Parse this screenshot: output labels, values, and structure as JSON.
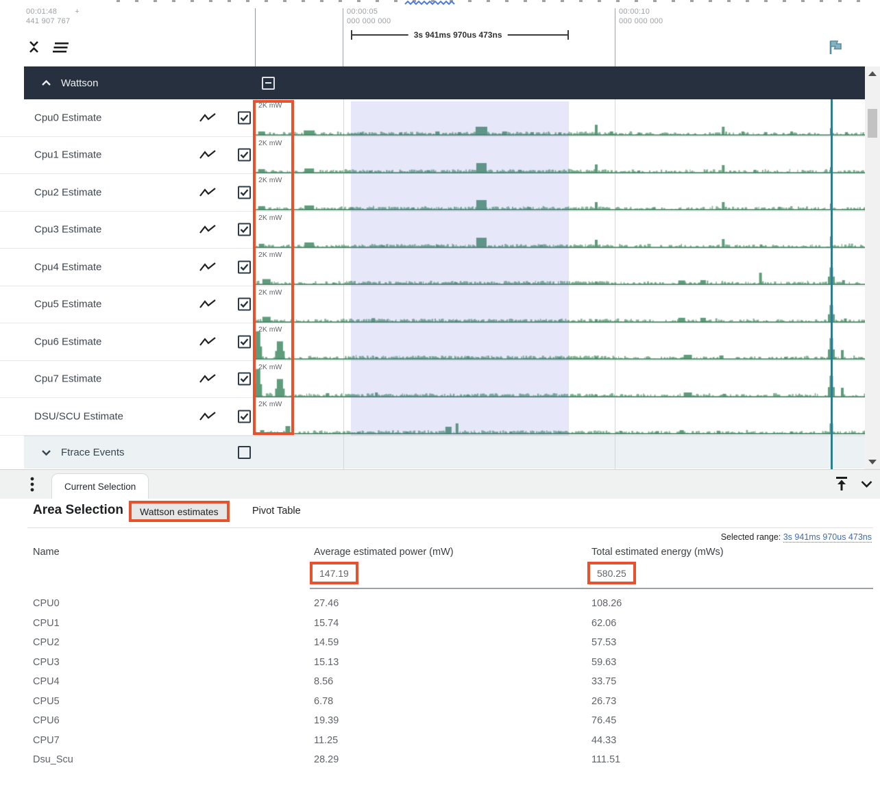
{
  "colors": {
    "accent_orange": "#e8512b",
    "group_header_bg": "#26303e",
    "selection_lavender": "rgba(99,104,210,0.16)",
    "marker_teal": "#2b7d8f",
    "flag_teal": "#6ba3b4",
    "link_blue": "#3d6bb5",
    "trace_fill": "#7fb394",
    "trace_spike": "#5f9c7b",
    "trace_line": "#3e7d5b"
  },
  "timeline": {
    "cursor": {
      "time": "00:01:48",
      "plus": "+",
      "ns": "441 907 767"
    },
    "ticks": [
      {
        "time": "00:00:05",
        "ns": "000 000 000"
      },
      {
        "time": "00:00:10",
        "ns": "000 000 000"
      }
    ],
    "selection_duration": "3s 941ms 970us 473ns"
  },
  "wattson_group": {
    "label": "Wattson",
    "checkbox_state": "indeterminate"
  },
  "tracks": [
    {
      "label": "Cpu0 Estimate",
      "unit": "2K mW",
      "checked": true,
      "seed": 11,
      "spikes": [
        [
          0.012,
          0.1,
          10
        ],
        [
          0.09,
          0.13,
          16
        ],
        [
          0.175,
          0.06,
          5
        ],
        [
          0.24,
          0.07,
          5
        ],
        [
          0.3,
          0.1,
          6
        ],
        [
          0.336,
          0.08,
          5
        ],
        [
          0.372,
          0.24,
          17
        ],
        [
          0.41,
          0.1,
          7
        ],
        [
          0.455,
          0.08,
          5
        ],
        [
          0.5,
          0.07,
          4
        ],
        [
          0.56,
          0.3,
          4
        ],
        [
          0.585,
          0.1,
          5
        ],
        [
          0.63,
          0.07,
          4
        ],
        [
          0.768,
          0.24,
          4
        ],
        [
          0.8,
          0.1,
          4
        ],
        [
          0.838,
          0.08,
          4
        ],
        [
          0.88,
          0.1,
          4
        ],
        [
          0.945,
          0.2,
          4
        ],
        [
          0.97,
          0.08,
          4
        ]
      ]
    },
    {
      "label": "Cpu1 Estimate",
      "unit": "2K mW",
      "checked": true,
      "seed": 22,
      "spikes": [
        [
          0.012,
          0.1,
          10
        ],
        [
          0.09,
          0.12,
          14
        ],
        [
          0.19,
          0.06,
          5
        ],
        [
          0.285,
          0.07,
          5
        ],
        [
          0.372,
          0.28,
          15
        ],
        [
          0.435,
          0.08,
          5
        ],
        [
          0.5,
          0.06,
          4
        ],
        [
          0.56,
          0.24,
          4
        ],
        [
          0.63,
          0.06,
          4
        ],
        [
          0.768,
          0.22,
          4
        ],
        [
          0.82,
          0.08,
          4
        ],
        [
          0.945,
          0.16,
          4
        ]
      ]
    },
    {
      "label": "Cpu2 Estimate",
      "unit": "2K mW",
      "checked": true,
      "seed": 33,
      "spikes": [
        [
          0.012,
          0.1,
          10
        ],
        [
          0.09,
          0.12,
          14
        ],
        [
          0.16,
          0.07,
          5
        ],
        [
          0.26,
          0.06,
          5
        ],
        [
          0.372,
          0.28,
          15
        ],
        [
          0.45,
          0.07,
          5
        ],
        [
          0.56,
          0.22,
          4
        ],
        [
          0.655,
          0.07,
          4
        ],
        [
          0.768,
          0.22,
          4
        ],
        [
          0.86,
          0.08,
          4
        ],
        [
          0.945,
          0.18,
          4
        ]
      ]
    },
    {
      "label": "Cpu3 Estimate",
      "unit": "2K mW",
      "checked": true,
      "seed": 44,
      "spikes": [
        [
          0.012,
          0.1,
          8
        ],
        [
          0.09,
          0.14,
          14
        ],
        [
          0.21,
          0.06,
          5
        ],
        [
          0.3,
          0.07,
          5
        ],
        [
          0.372,
          0.28,
          15
        ],
        [
          0.47,
          0.07,
          5
        ],
        [
          0.56,
          0.22,
          4
        ],
        [
          0.768,
          0.24,
          4
        ],
        [
          0.83,
          0.08,
          4
        ],
        [
          0.945,
          0.32,
          4
        ]
      ]
    },
    {
      "label": "Cpu4 Estimate",
      "unit": "2K mW",
      "checked": true,
      "seed": 55,
      "spikes": [
        [
          0.02,
          0.15,
          12
        ],
        [
          0.13,
          0.05,
          4
        ],
        [
          0.33,
          0.06,
          5
        ],
        [
          0.45,
          0.05,
          4
        ],
        [
          0.56,
          0.08,
          4
        ],
        [
          0.7,
          0.11,
          10
        ],
        [
          0.735,
          0.12,
          8
        ],
        [
          0.829,
          0.34,
          4
        ],
        [
          0.945,
          0.5,
          5
        ],
        [
          0.965,
          0.12,
          4
        ]
      ]
    },
    {
      "label": "Cpu5 Estimate",
      "unit": "2K mW",
      "checked": true,
      "seed": 66,
      "spikes": [
        [
          0.02,
          0.15,
          12
        ],
        [
          0.195,
          0.11,
          5
        ],
        [
          0.33,
          0.05,
          4
        ],
        [
          0.5,
          0.06,
          4
        ],
        [
          0.56,
          0.08,
          4
        ],
        [
          0.7,
          0.12,
          10
        ],
        [
          0.735,
          0.12,
          8
        ],
        [
          0.945,
          0.5,
          5
        ],
        [
          0.968,
          0.1,
          4
        ]
      ]
    },
    {
      "label": "Cpu6 Estimate",
      "unit": "2K mW",
      "checked": true,
      "seed": 77,
      "spikes": [
        [
          0.006,
          0.82,
          7
        ],
        [
          0.042,
          0.52,
          9
        ],
        [
          0.2,
          0.06,
          4
        ],
        [
          0.35,
          0.08,
          5
        ],
        [
          0.5,
          0.05,
          4
        ],
        [
          0.56,
          0.06,
          4
        ],
        [
          0.71,
          0.12,
          12
        ],
        [
          0.765,
          0.1,
          6
        ],
        [
          0.87,
          0.06,
          4
        ],
        [
          0.945,
          0.62,
          5
        ],
        [
          0.963,
          0.26,
          4
        ]
      ]
    },
    {
      "label": "Cpu7 Estimate",
      "unit": "2K mW",
      "checked": true,
      "seed": 88,
      "spikes": [
        [
          0.006,
          0.82,
          7
        ],
        [
          0.042,
          0.52,
          9
        ],
        [
          0.12,
          0.1,
          5
        ],
        [
          0.2,
          0.12,
          4
        ],
        [
          0.35,
          0.06,
          4
        ],
        [
          0.56,
          0.06,
          4
        ],
        [
          0.71,
          0.12,
          12
        ],
        [
          0.77,
          0.08,
          5
        ],
        [
          0.945,
          0.62,
          5
        ],
        [
          0.963,
          0.26,
          4
        ]
      ]
    },
    {
      "label": "DSU/SCU Estimate",
      "unit": "2K mW",
      "checked": true,
      "seed": 99,
      "spikes": [
        [
          0.013,
          0.1,
          6
        ],
        [
          0.055,
          0.22,
          7
        ],
        [
          0.17,
          0.05,
          4
        ],
        [
          0.25,
          0.06,
          4
        ],
        [
          0.318,
          0.2,
          9
        ],
        [
          0.332,
          0.3,
          4
        ],
        [
          0.42,
          0.06,
          4
        ],
        [
          0.5,
          0.06,
          4
        ],
        [
          0.6,
          0.08,
          4
        ],
        [
          0.66,
          0.07,
          5
        ],
        [
          0.7,
          0.1,
          6
        ],
        [
          0.76,
          0.08,
          5
        ],
        [
          0.88,
          0.06,
          4
        ],
        [
          0.945,
          0.3,
          5
        ]
      ]
    }
  ],
  "ftrace_group": {
    "label": "Ftrace Events",
    "checkbox_state": "unchecked"
  },
  "bottom_tabbar": {
    "current_tab": "Current Selection"
  },
  "details": {
    "title": "Area Selection",
    "view_tabs": [
      {
        "label": "Wattson estimates",
        "active": true
      },
      {
        "label": "Pivot Table",
        "active": false
      }
    ],
    "selected_range": {
      "label": "Selected range:",
      "value": "3s 941ms 970us 473ns"
    },
    "table": {
      "columns": [
        "Name",
        "Average estimated power (mW)",
        "Total estimated energy (mWs)"
      ],
      "totals": {
        "power": "147.19",
        "energy": "580.25"
      },
      "rows": [
        {
          "name": "CPU0",
          "power": "27.46",
          "energy": "108.26"
        },
        {
          "name": "CPU1",
          "power": "15.74",
          "energy": "62.06"
        },
        {
          "name": "CPU2",
          "power": "14.59",
          "energy": "57.53"
        },
        {
          "name": "CPU3",
          "power": "15.13",
          "energy": "59.63"
        },
        {
          "name": "CPU4",
          "power": "8.56",
          "energy": "33.75"
        },
        {
          "name": "CPU5",
          "power": "6.78",
          "energy": "26.73"
        },
        {
          "name": "CPU6",
          "power": "19.39",
          "energy": "76.45"
        },
        {
          "name": "CPU7",
          "power": "11.25",
          "energy": "44.33"
        },
        {
          "name": "Dsu_Scu",
          "power": "28.29",
          "energy": "111.51"
        }
      ]
    }
  }
}
